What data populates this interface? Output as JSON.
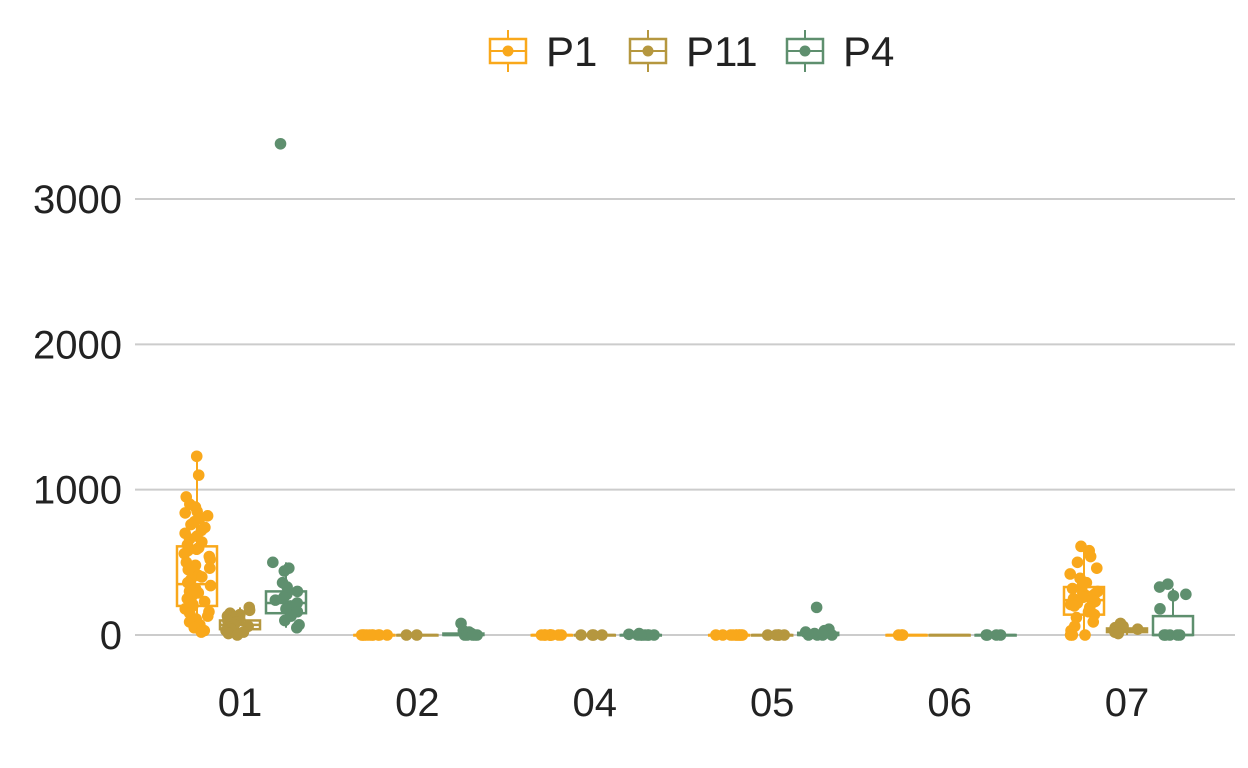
{
  "chart_data": {
    "type": "box",
    "categories": [
      "01",
      "02",
      "04",
      "05",
      "06",
      "07"
    ],
    "series": [
      {
        "name": "P1",
        "color": "#F9A81B",
        "boxes": [
          {
            "q1": 200,
            "median": 350,
            "q3": 610,
            "min": 20,
            "max": 1230
          },
          {
            "q1": 0,
            "median": 0,
            "q3": 0,
            "min": 0,
            "max": 0
          },
          {
            "q1": 0,
            "median": 0,
            "q3": 0,
            "min": 0,
            "max": 0
          },
          {
            "q1": 0,
            "median": 0,
            "q3": 0,
            "min": 0,
            "max": 0
          },
          {
            "q1": 0,
            "median": 0,
            "q3": 0,
            "min": 0,
            "max": 0
          },
          {
            "q1": 140,
            "median": 240,
            "q3": 330,
            "min": 0,
            "max": 610
          }
        ],
        "points": [
          [
            1230,
            1100,
            950,
            900,
            880,
            850,
            840,
            820,
            800,
            780,
            760,
            740,
            720,
            700,
            680,
            660,
            640,
            620,
            600,
            590,
            580,
            560,
            540,
            520,
            500,
            480,
            460,
            450,
            430,
            410,
            400,
            380,
            360,
            340,
            320,
            300,
            290,
            270,
            250,
            230,
            210,
            200,
            180,
            160,
            150,
            130,
            110,
            90,
            70,
            50,
            30,
            20
          ],
          [
            0,
            0,
            0,
            0,
            0,
            0,
            0,
            0,
            0,
            0
          ],
          [
            0,
            0,
            0,
            0,
            0,
            0,
            0,
            0,
            0,
            0
          ],
          [
            0,
            0,
            0,
            0,
            0,
            0,
            0,
            0,
            0,
            0
          ],
          [
            0,
            0,
            0
          ],
          [
            610,
            580,
            540,
            500,
            460,
            420,
            390,
            360,
            340,
            320,
            300,
            290,
            280,
            270,
            260,
            250,
            240,
            230,
            220,
            210,
            200,
            190,
            180,
            160,
            140,
            120,
            90,
            60,
            30,
            0,
            0,
            0
          ]
        ]
      },
      {
        "name": "P11",
        "color": "#B5973F",
        "boxes": [
          {
            "q1": 40,
            "median": 70,
            "q3": 100,
            "min": 0,
            "max": 190
          },
          {
            "q1": 0,
            "median": 0,
            "q3": 0,
            "min": 0,
            "max": 0
          },
          {
            "q1": 0,
            "median": 0,
            "q3": 0,
            "min": 0,
            "max": 0
          },
          {
            "q1": 0,
            "median": 0,
            "q3": 0,
            "min": 0,
            "max": 0
          },
          {
            "q1": 0,
            "median": 0,
            "q3": 0,
            "min": 0,
            "max": 0
          },
          {
            "q1": 20,
            "median": 30,
            "q3": 45,
            "min": 0,
            "max": 80
          }
        ],
        "points": [
          [
            190,
            170,
            150,
            140,
            130,
            120,
            110,
            100,
            90,
            80,
            70,
            60,
            50,
            40,
            30,
            20,
            10,
            0
          ],
          [
            0,
            0
          ],
          [
            0,
            0,
            0,
            0
          ],
          [
            0,
            0,
            0,
            0,
            0
          ],
          [],
          [
            80,
            60,
            50,
            40,
            30,
            20,
            10
          ]
        ]
      },
      {
        "name": "P4",
        "color": "#5E8F6E",
        "boxes": [
          {
            "q1": 150,
            "median": 220,
            "q3": 300,
            "min": 50,
            "max": 500
          },
          {
            "q1": 0,
            "median": 0,
            "q3": 10,
            "min": 0,
            "max": 20
          },
          {
            "q1": 0,
            "median": 0,
            "q3": 0,
            "min": 0,
            "max": 0
          },
          {
            "q1": 0,
            "median": 0,
            "q3": 15,
            "min": 0,
            "max": 30
          },
          {
            "q1": 0,
            "median": 0,
            "q3": 0,
            "min": 0,
            "max": 0
          },
          {
            "q1": 0,
            "median": 0,
            "q3": 130,
            "min": 0,
            "max": 320
          }
        ],
        "points": [
          [
            3380,
            500,
            460,
            440,
            360,
            330,
            300,
            280,
            260,
            240,
            220,
            200,
            180,
            160,
            130,
            100,
            70,
            50
          ],
          [
            80,
            30,
            20,
            10,
            0,
            0,
            0,
            0,
            0
          ],
          [
            10,
            5,
            0,
            0,
            0,
            0,
            0,
            0,
            0
          ],
          [
            190,
            40,
            30,
            20,
            10,
            0,
            0,
            0,
            0
          ],
          [
            0,
            0,
            0,
            0
          ],
          [
            350,
            330,
            280,
            270,
            180,
            0,
            0,
            0,
            0,
            0
          ]
        ]
      }
    ],
    "y_ticks": [
      "0",
      "1000",
      "2000",
      "3000"
    ],
    "ylim": [
      -270,
      3800
    ],
    "grid": true,
    "legend_position": "top-center",
    "title": "",
    "xlabel": "",
    "ylabel": ""
  }
}
